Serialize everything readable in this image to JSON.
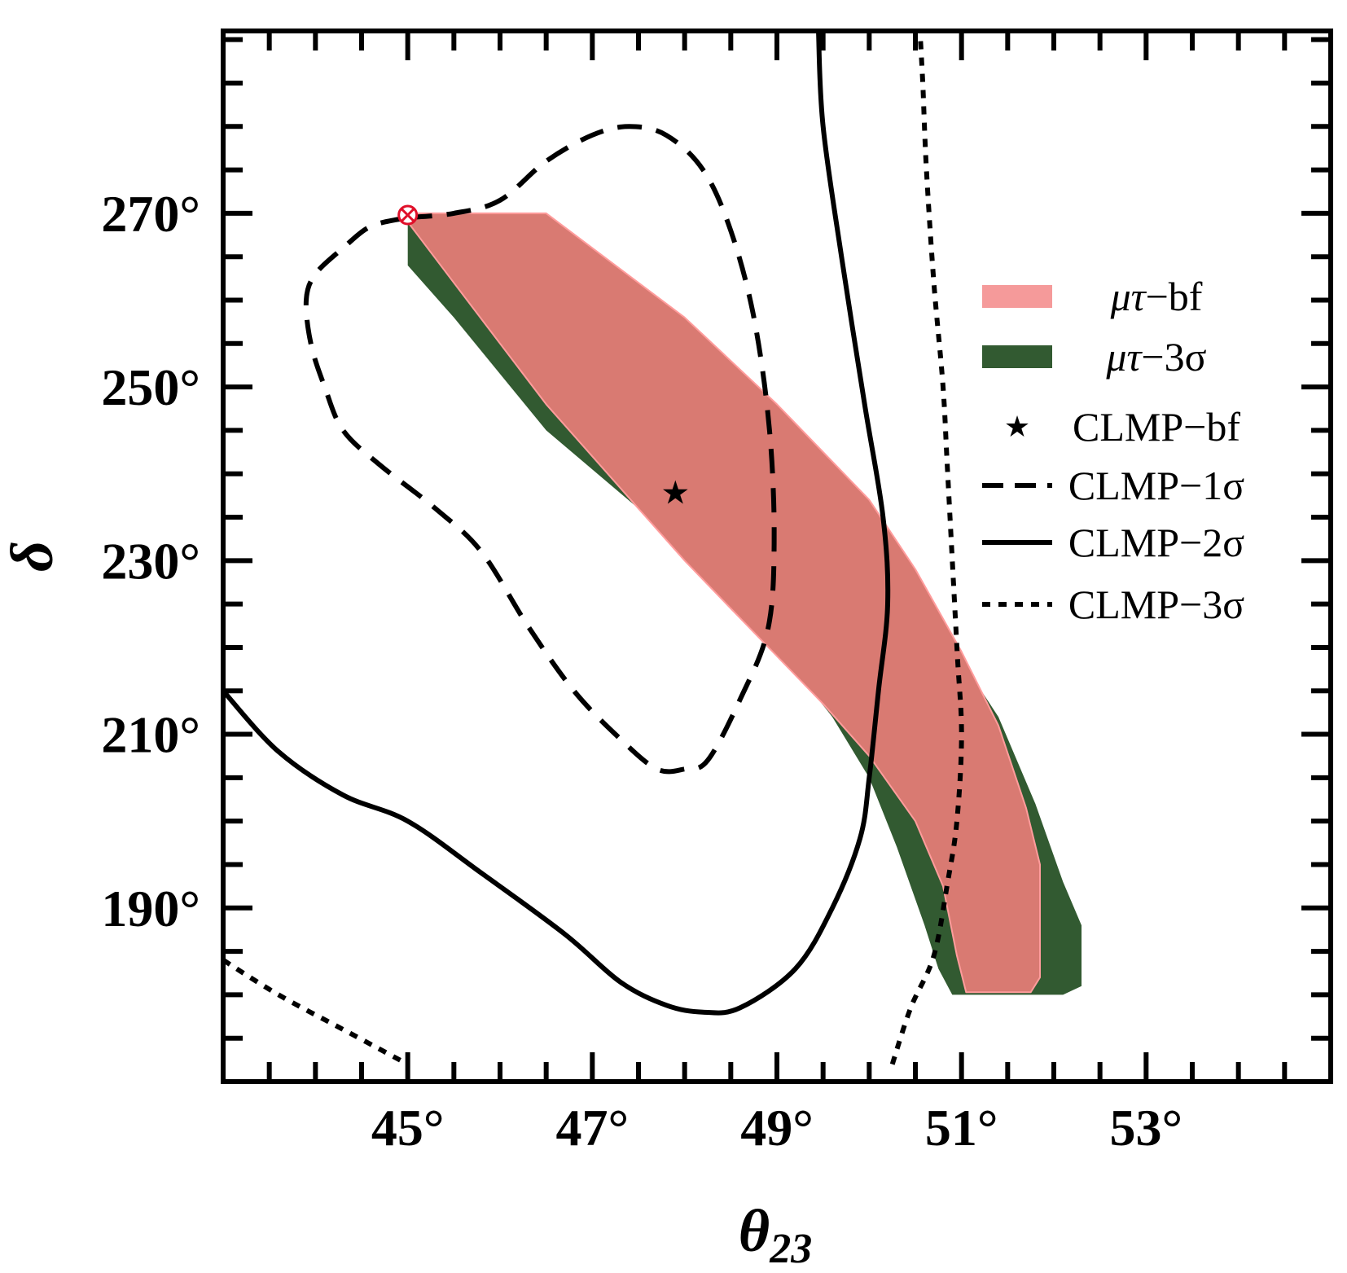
{
  "chart_data": {
    "type": "contour",
    "xlabel": "θ",
    "xlabel_sub": "23",
    "ylabel": "δ",
    "xlim": [
      43,
      55
    ],
    "ylim": [
      170,
      291
    ],
    "x_ticks": [
      {
        "value": 45,
        "label": "45°"
      },
      {
        "value": 47,
        "label": "47°"
      },
      {
        "value": 49,
        "label": "49°"
      },
      {
        "value": 51,
        "label": "51°"
      },
      {
        "value": 53,
        "label": "53°"
      }
    ],
    "y_ticks": [
      {
        "value": 190,
        "label": "190°"
      },
      {
        "value": 210,
        "label": "210°"
      },
      {
        "value": 230,
        "label": "230°"
      },
      {
        "value": 250,
        "label": "250°"
      },
      {
        "value": 270,
        "label": "270°"
      }
    ],
    "minor_x_step": 0.5,
    "minor_y_step": 5,
    "colors": {
      "bf_fill": "#d97a72",
      "bf_legend": "#f59a9a",
      "bf_edge": "#ff9c9c",
      "sigma3_fill": "#325a31",
      "line": "#000000",
      "marker": "#e0102a"
    },
    "legend": [
      {
        "id": "mt-bf",
        "style": "fill-pink",
        "prefix": "μτ",
        "suffix": "−bf"
      },
      {
        "id": "mt-3s",
        "style": "fill-green",
        "prefix": "μτ",
        "suffix": "−3σ"
      },
      {
        "id": "clmp-bf",
        "style": "star",
        "prefix": "",
        "suffix": "CLMP−bf"
      },
      {
        "id": "clmp-1s",
        "style": "dashed",
        "prefix": "",
        "suffix": "CLMP−1σ"
      },
      {
        "id": "clmp-2s",
        "style": "solid",
        "prefix": "",
        "suffix": "CLMP−2σ"
      },
      {
        "id": "clmp-3s",
        "style": "dotted",
        "prefix": "",
        "suffix": "CLMP−3σ"
      }
    ],
    "series": {
      "mt_3sigma_region": [
        [
          45.0,
          270.0
        ],
        [
          46.5,
          270.0
        ],
        [
          48.5,
          251.5
        ],
        [
          49.5,
          240.5
        ],
        [
          50.0,
          235.0
        ],
        [
          50.5,
          227.0
        ],
        [
          51.0,
          218.5
        ],
        [
          51.4,
          212.0
        ],
        [
          51.8,
          202.0
        ],
        [
          52.1,
          193.0
        ],
        [
          52.3,
          188.0
        ],
        [
          52.3,
          181.0
        ],
        [
          52.1,
          180.0
        ],
        [
          50.9,
          180.0
        ],
        [
          50.75,
          183.0
        ],
        [
          50.6,
          188.0
        ],
        [
          50.3,
          197.0
        ],
        [
          50.0,
          205.0
        ],
        [
          49.6,
          212.0
        ],
        [
          49.0,
          220.0
        ],
        [
          48.5,
          225.0
        ],
        [
          48.0,
          230.5
        ],
        [
          47.5,
          236.0
        ],
        [
          46.5,
          245.0
        ],
        [
          45.5,
          258.0
        ],
        [
          45.0,
          264.0
        ],
        [
          45.0,
          270.0
        ]
      ],
      "mt_bf_region": [
        [
          45.0,
          270.0
        ],
        [
          46.5,
          270.0
        ],
        [
          48.0,
          258.0
        ],
        [
          49.0,
          248.0
        ],
        [
          50.0,
          237.0
        ],
        [
          50.5,
          229.0
        ],
        [
          51.0,
          219.5
        ],
        [
          51.4,
          211.0
        ],
        [
          51.7,
          201.5
        ],
        [
          51.85,
          195.0
        ],
        [
          51.85,
          182.0
        ],
        [
          51.75,
          180.3
        ],
        [
          51.05,
          180.3
        ],
        [
          50.95,
          184.5
        ],
        [
          50.8,
          192.5
        ],
        [
          50.5,
          200.0
        ],
        [
          50.0,
          207.5
        ],
        [
          49.5,
          213.5
        ],
        [
          49.0,
          219.0
        ],
        [
          48.5,
          224.5
        ],
        [
          48.0,
          230.0
        ],
        [
          47.5,
          236.0
        ],
        [
          46.5,
          248.0
        ],
        [
          45.5,
          262.0
        ],
        [
          45.0,
          269.0
        ],
        [
          45.0,
          270.0
        ]
      ],
      "clmp_1sigma": [
        [
          45.0,
          269.5
        ],
        [
          45.5,
          270.0
        ],
        [
          46.0,
          271.5
        ],
        [
          46.5,
          276.0
        ],
        [
          47.0,
          279.0
        ],
        [
          47.4,
          280.0
        ],
        [
          47.8,
          279.0
        ],
        [
          48.2,
          275.0
        ],
        [
          48.5,
          268.0
        ],
        [
          48.75,
          258.0
        ],
        [
          48.92,
          245.0
        ],
        [
          48.97,
          232.0
        ],
        [
          48.9,
          222.0
        ],
        [
          48.6,
          214.0
        ],
        [
          48.25,
          207.0
        ],
        [
          48.0,
          206.0
        ],
        [
          47.7,
          206.0
        ],
        [
          47.3,
          209.5
        ],
        [
          46.8,
          215.0
        ],
        [
          46.3,
          222.5
        ],
        [
          45.8,
          231.0
        ],
        [
          45.3,
          236.0
        ],
        [
          44.7,
          241.0
        ],
        [
          44.3,
          245.0
        ],
        [
          44.1,
          250.0
        ],
        [
          43.95,
          255.0
        ],
        [
          43.9,
          260.0
        ],
        [
          44.0,
          263.0
        ],
        [
          44.3,
          266.0
        ],
        [
          44.6,
          268.5
        ],
        [
          45.0,
          269.5
        ]
      ],
      "clmp_2sigma": [
        [
          43.0,
          215.0
        ],
        [
          43.6,
          208.0
        ],
        [
          44.3,
          203.0
        ],
        [
          45.0,
          200.0
        ],
        [
          45.8,
          194.0
        ],
        [
          46.7,
          187.0
        ],
        [
          47.3,
          181.5
        ],
        [
          47.8,
          178.8
        ],
        [
          48.2,
          178.0
        ],
        [
          48.6,
          178.5
        ],
        [
          49.2,
          183.0
        ],
        [
          49.6,
          190.0
        ],
        [
          49.9,
          198.0
        ],
        [
          50.0,
          205.0
        ],
        [
          50.1,
          215.0
        ],
        [
          50.2,
          225.0
        ],
        [
          50.15,
          235.0
        ],
        [
          49.95,
          248.0
        ],
        [
          49.7,
          265.0
        ],
        [
          49.5,
          280.0
        ],
        [
          49.45,
          291.0
        ]
      ],
      "clmp_3sigma_right": [
        [
          50.25,
          172.0
        ],
        [
          50.45,
          178.5
        ],
        [
          50.7,
          184.5
        ],
        [
          50.85,
          193.0
        ],
        [
          50.95,
          200.0
        ],
        [
          51.0,
          210.0
        ],
        [
          50.95,
          220.0
        ],
        [
          50.85,
          240.0
        ],
        [
          50.8,
          250.0
        ],
        [
          50.7,
          262.0
        ],
        [
          50.62,
          275.0
        ],
        [
          50.58,
          285.0
        ],
        [
          50.55,
          291.0
        ]
      ],
      "clmp_3sigma_left": [
        [
          43.0,
          184.0
        ],
        [
          43.6,
          180.0
        ],
        [
          44.3,
          176.0
        ],
        [
          45.0,
          172.0
        ]
      ],
      "clmp_bf_point": [
        47.9,
        237.8
      ],
      "mt_marker_point": [
        45.0,
        269.8
      ]
    }
  }
}
